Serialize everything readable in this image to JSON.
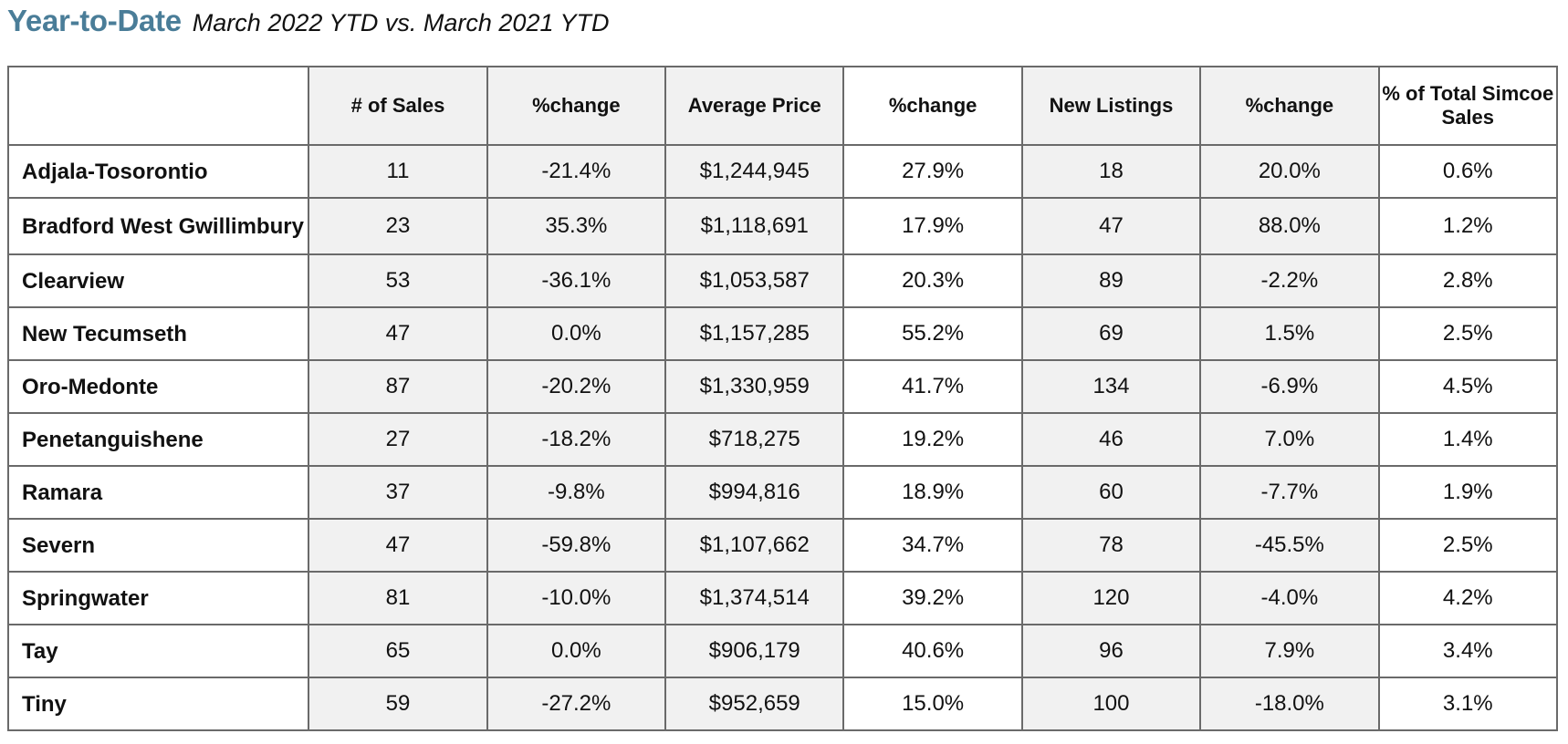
{
  "header": {
    "title": "Year-to-Date",
    "subtitle": "March 2022 YTD vs. March 2021 YTD"
  },
  "table": {
    "columns": [
      "",
      "# of Sales",
      "%change",
      "Average Price",
      "%change",
      "New Listings",
      "%change",
      "% of Total Simcoe Sales"
    ],
    "rows": [
      {
        "area": "Adjala-Tosorontio",
        "sales": "11",
        "sales_change": "-21.4%",
        "avg_price": "$1,244,945",
        "price_change": "27.9%",
        "new_listings": "18",
        "listings_change": "20.0%",
        "pct_total": "0.6%"
      },
      {
        "area": "Bradford West Gwillimbury",
        "sales": "23",
        "sales_change": "35.3%",
        "avg_price": "$1,118,691",
        "price_change": "17.9%",
        "new_listings": "47",
        "listings_change": "88.0%",
        "pct_total": "1.2%"
      },
      {
        "area": "Clearview",
        "sales": "53",
        "sales_change": "-36.1%",
        "avg_price": "$1,053,587",
        "price_change": "20.3%",
        "new_listings": "89",
        "listings_change": "-2.2%",
        "pct_total": "2.8%"
      },
      {
        "area": "New Tecumseth",
        "sales": "47",
        "sales_change": "0.0%",
        "avg_price": "$1,157,285",
        "price_change": "55.2%",
        "new_listings": "69",
        "listings_change": "1.5%",
        "pct_total": "2.5%"
      },
      {
        "area": "Oro-Medonte",
        "sales": "87",
        "sales_change": "-20.2%",
        "avg_price": "$1,330,959",
        "price_change": "41.7%",
        "new_listings": "134",
        "listings_change": "-6.9%",
        "pct_total": "4.5%"
      },
      {
        "area": "Penetanguishene",
        "sales": "27",
        "sales_change": "-18.2%",
        "avg_price": "$718,275",
        "price_change": "19.2%",
        "new_listings": "46",
        "listings_change": "7.0%",
        "pct_total": "1.4%"
      },
      {
        "area": "Ramara",
        "sales": "37",
        "sales_change": "-9.8%",
        "avg_price": "$994,816",
        "price_change": "18.9%",
        "new_listings": "60",
        "listings_change": "-7.7%",
        "pct_total": "1.9%"
      },
      {
        "area": "Severn",
        "sales": "47",
        "sales_change": "-59.8%",
        "avg_price": "$1,107,662",
        "price_change": "34.7%",
        "new_listings": "78",
        "listings_change": "-45.5%",
        "pct_total": "2.5%"
      },
      {
        "area": "Springwater",
        "sales": "81",
        "sales_change": "-10.0%",
        "avg_price": "$1,374,514",
        "price_change": "39.2%",
        "new_listings": "120",
        "listings_change": "-4.0%",
        "pct_total": "4.2%"
      },
      {
        "area": "Tay",
        "sales": "65",
        "sales_change": "0.0%",
        "avg_price": "$906,179",
        "price_change": "40.6%",
        "new_listings": "96",
        "listings_change": "7.9%",
        "pct_total": "3.4%"
      },
      {
        "area": "Tiny",
        "sales": "59",
        "sales_change": "-27.2%",
        "avg_price": "$952,659",
        "price_change": "15.0%",
        "new_listings": "100",
        "listings_change": "-18.0%",
        "pct_total": "3.1%"
      }
    ]
  },
  "colors": {
    "title": "#4a7d98",
    "shaded_cell": "#f1f1f1",
    "border": "#6a6a6a"
  }
}
